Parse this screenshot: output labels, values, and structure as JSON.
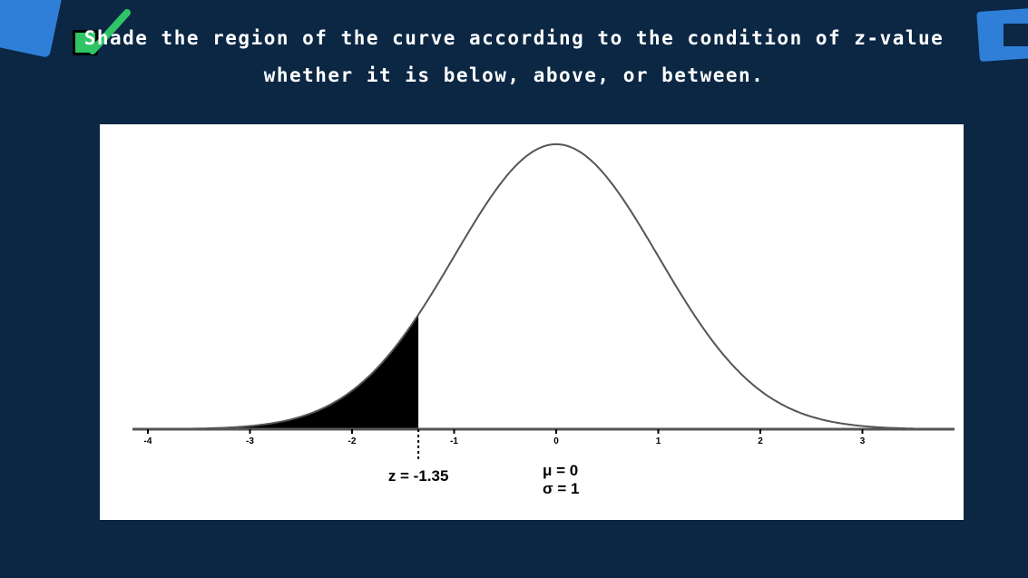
{
  "colors": {
    "background": "#0b2744",
    "accent_blue": "#2f7fd8",
    "check_green": "#2fc566",
    "text": "#ffffff",
    "plot_background": "#ffffff",
    "curve": "#555555",
    "shade": "#000000"
  },
  "instructions": {
    "checkbox_icon": "checkbox-checked-icon",
    "line1": "Shade the region of the curve according to the condition of z-value",
    "line2": "whether it is below, above, or between."
  },
  "chart_data": {
    "type": "area",
    "distribution": "standard normal",
    "x": [
      -3.6,
      -3.2,
      -2.8,
      -2.4,
      -2.0,
      -1.6,
      -1.2,
      -0.8,
      -0.4,
      0.0,
      0.4,
      0.8,
      1.2,
      1.6,
      2.0,
      2.4,
      2.8,
      3.2,
      3.5
    ],
    "y": [
      0.0006,
      0.0024,
      0.0079,
      0.0224,
      0.054,
      0.1109,
      0.1942,
      0.2897,
      0.3683,
      0.3989,
      0.3683,
      0.2897,
      0.1942,
      0.1109,
      0.054,
      0.0224,
      0.0079,
      0.0024,
      0.0009
    ],
    "mean": 0,
    "sd": 1,
    "shaded_region": {
      "type": "below",
      "upper_z": -1.35
    },
    "xlim": [
      -4.5,
      3.9
    ],
    "ylim": [
      0,
      0.41
    ],
    "x_ticks": [
      -4,
      -3,
      -2,
      -1,
      0,
      1,
      2,
      3
    ],
    "x_tick_labels": [
      "-4",
      "-3",
      "-2",
      "-1",
      "0",
      "1",
      "2",
      "3"
    ],
    "annotations": {
      "z_label": "z = -1.35",
      "mu_label": "μ = 0",
      "sigma_label": "σ = 1"
    }
  }
}
